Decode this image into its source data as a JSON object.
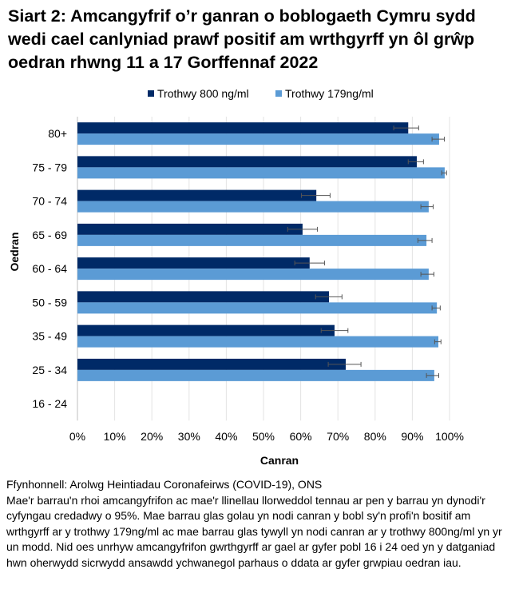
{
  "title": "Siart 2: Amcangyfrif o’r ganran o boblogaeth Cymru sydd wedi cael canlyniad prawf positif am wrthgyrff yn ôl grŵp oedran rhwng 11 a 17 Gorffennaf 2022",
  "chart_data": {
    "type": "bar",
    "orientation": "horizontal",
    "categories": [
      "80+",
      "75 - 79",
      "70 - 74",
      "65 - 69",
      "60 - 64",
      "50 - 59",
      "35 - 49",
      "25 - 34",
      "16 - 24"
    ],
    "series": [
      {
        "name": "Trothwy 800 ng/ml",
        "color": "#002a67",
        "values": [
          88.9,
          91.2,
          64.2,
          60.5,
          62.4,
          67.6,
          69.1,
          72.1,
          null
        ],
        "lower": [
          85.0,
          88.9,
          60.2,
          56.5,
          58.4,
          64.0,
          65.5,
          67.4,
          null
        ],
        "upper": [
          91.7,
          93.0,
          67.9,
          64.5,
          66.4,
          71.1,
          72.7,
          76.2,
          null
        ]
      },
      {
        "name": "Trothwy 179ng/ml",
        "color": "#5b9bd5",
        "values": [
          97.2,
          98.7,
          94.4,
          93.8,
          94.4,
          96.6,
          97.0,
          95.9,
          null
        ],
        "lower": [
          95.3,
          97.9,
          92.3,
          91.5,
          92.3,
          95.3,
          96.0,
          93.8,
          null
        ],
        "upper": [
          98.6,
          99.2,
          95.6,
          95.3,
          95.8,
          97.5,
          97.7,
          97.1,
          null
        ]
      }
    ],
    "xlabel": "Canran",
    "ylabel": "Oedran",
    "xlim": [
      0,
      100
    ],
    "xticks": [
      "0%",
      "10%",
      "20%",
      "30%",
      "40%",
      "50%",
      "60%",
      "70%",
      "80%",
      "90%",
      "100%"
    ],
    "grid": "vertical",
    "legend": "top"
  },
  "footnote": {
    "source": "Ffynhonnell: Arolwg Heintiadau Coronafeirws (COVID-19), ONS",
    "note": "Mae'r barrau'n rhoi amcangyfrifon ac mae'r llinellau llorweddol tennau ar pen y barrau yn dynodi'r cyfyngau credadwy o 95%. Mae barrau glas golau yn nodi canran y bobl sy'n profi'n bositif am wrthgyrff ar y trothwy 179ng/ml ac mae barrau glas tywyll yn nodi canran ar y trothwy 800ng/ml yn yr un modd. Nid oes unrhyw amcangyfrifon gwrthgyrff ar gael ar gyfer pobl 16 i 24 oed yn y datganiad hwn oherwydd sicrwydd ansawdd ychwanegol parhaus o ddata ar gyfer grwpiau oedran iau."
  }
}
